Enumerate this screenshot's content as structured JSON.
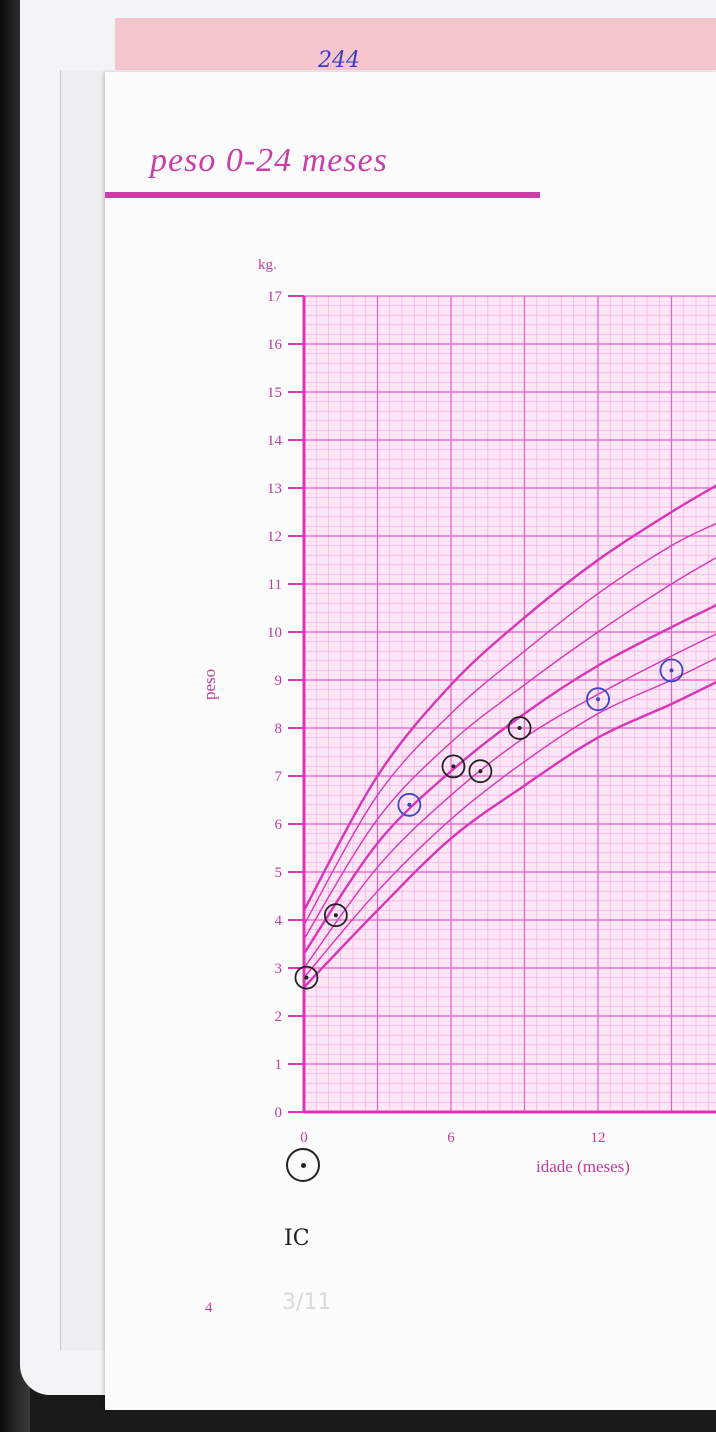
{
  "page": {
    "title": "peso 0-24 meses",
    "page_number": "4",
    "handwritten_top": "244",
    "legend_note": "IC",
    "legend_date": "3/11"
  },
  "colors": {
    "grid_major": "#e85cc8",
    "grid_minor": "#f6b6e6",
    "grid_background": "#fde6f6",
    "curve": "#d935b8",
    "axis": "#d935b8",
    "text": "#c03c9c",
    "marker_black": "#222222",
    "marker_blue": "#3b46c9"
  },
  "chart_data": {
    "type": "line",
    "title": "peso 0-24 meses",
    "xlabel": "idade (meses)",
    "ylabel": "peso",
    "yunit": "kg.",
    "xlim": [
      0,
      24
    ],
    "ylim": [
      0,
      17
    ],
    "x_ticks": [
      0,
      6,
      12
    ],
    "y_ticks": [
      0,
      1,
      2,
      3,
      4,
      5,
      6,
      7,
      8,
      9,
      10,
      11,
      12,
      13,
      14,
      15,
      16,
      17
    ],
    "grid": true,
    "series": [
      {
        "x": [
          0,
          3,
          6,
          9,
          12,
          15,
          17
        ],
        "y": [
          4.2,
          7.0,
          8.9,
          10.3,
          11.5,
          12.5,
          13.1
        ]
      },
      {
        "x": [
          0,
          3,
          6,
          9,
          12,
          15,
          17
        ],
        "y": [
          3.9,
          6.6,
          8.3,
          9.6,
          10.8,
          11.8,
          12.3
        ]
      },
      {
        "x": [
          0,
          3,
          6,
          9,
          12,
          15,
          17
        ],
        "y": [
          3.6,
          6.1,
          7.7,
          8.9,
          10.0,
          11.0,
          11.6
        ]
      },
      {
        "x": [
          0,
          3,
          6,
          9,
          12,
          15,
          17
        ],
        "y": [
          3.3,
          5.6,
          7.1,
          8.3,
          9.3,
          10.1,
          10.6
        ]
      },
      {
        "x": [
          0,
          3,
          6,
          9,
          12,
          15,
          17
        ],
        "y": [
          3.0,
          5.1,
          6.6,
          7.8,
          8.7,
          9.5,
          10.0
        ]
      },
      {
        "x": [
          0,
          3,
          6,
          9,
          12,
          15,
          17
        ],
        "y": [
          2.8,
          4.6,
          6.1,
          7.3,
          8.3,
          9.0,
          9.5
        ]
      },
      {
        "x": [
          0,
          3,
          6,
          9,
          12,
          15,
          17
        ],
        "y": [
          2.6,
          4.2,
          5.7,
          6.8,
          7.8,
          8.5,
          9.0
        ]
      }
    ],
    "measurements": [
      {
        "x": 0.1,
        "y": 2.8,
        "ink": "black"
      },
      {
        "x": 1.3,
        "y": 4.1,
        "ink": "black"
      },
      {
        "x": 4.3,
        "y": 6.4,
        "ink": "blue"
      },
      {
        "x": 6.1,
        "y": 7.2,
        "ink": "black"
      },
      {
        "x": 7.2,
        "y": 7.1,
        "ink": "black"
      },
      {
        "x": 8.8,
        "y": 8.0,
        "ink": "black"
      },
      {
        "x": 12.0,
        "y": 8.6,
        "ink": "blue"
      },
      {
        "x": 15.0,
        "y": 9.2,
        "ink": "blue"
      }
    ]
  }
}
